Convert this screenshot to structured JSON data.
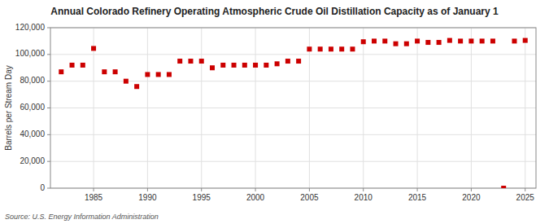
{
  "chart_data": {
    "type": "scatter",
    "title": "Annual Colorado Refinery Operating Atmospheric Crude Oil Distillation Capacity as of January 1",
    "ylabel": "Barrels per Stream Day",
    "annotations": [
      "Source: U.S. Energy Information Administration"
    ],
    "x": [
      1982,
      1983,
      1984,
      1985,
      1986,
      1987,
      1988,
      1989,
      1990,
      1991,
      1992,
      1993,
      1994,
      1995,
      1996,
      1997,
      1998,
      1999,
      2000,
      2001,
      2002,
      2003,
      2004,
      2005,
      2006,
      2007,
      2008,
      2009,
      2010,
      2011,
      2012,
      2013,
      2014,
      2015,
      2016,
      2017,
      2018,
      2019,
      2020,
      2021,
      2022,
      2023,
      2024,
      2025
    ],
    "values": [
      87000,
      92000,
      92000,
      104500,
      87000,
      87000,
      80000,
      76000,
      85000,
      85000,
      85000,
      95000,
      95000,
      95000,
      90000,
      92000,
      92000,
      92000,
      92000,
      92000,
      93000,
      95000,
      95000,
      104000,
      104000,
      104000,
      104000,
      104000,
      109500,
      110000,
      110000,
      108000,
      108000,
      110000,
      109000,
      109000,
      110500,
      110000,
      110000,
      110000,
      110000,
      0,
      110000,
      110500
    ],
    "color": "#cc0000",
    "marker": "square",
    "grid": true,
    "xlim": [
      1981,
      2026
    ],
    "xticks": [
      1985,
      1990,
      1995,
      2000,
      2005,
      2010,
      2015,
      2020,
      2025
    ],
    "ylim": [
      0,
      120000
    ],
    "yticks": [
      0,
      {
        "value": 20000,
        "label": "20,000"
      },
      {
        "value": 40000,
        "label": "40,000"
      },
      {
        "value": 60000,
        "label": "60,000"
      },
      {
        "value": 80000,
        "label": "80,000"
      },
      {
        "value": 100000,
        "label": "100,000"
      },
      {
        "value": 120000,
        "label": "120,000"
      }
    ]
  }
}
